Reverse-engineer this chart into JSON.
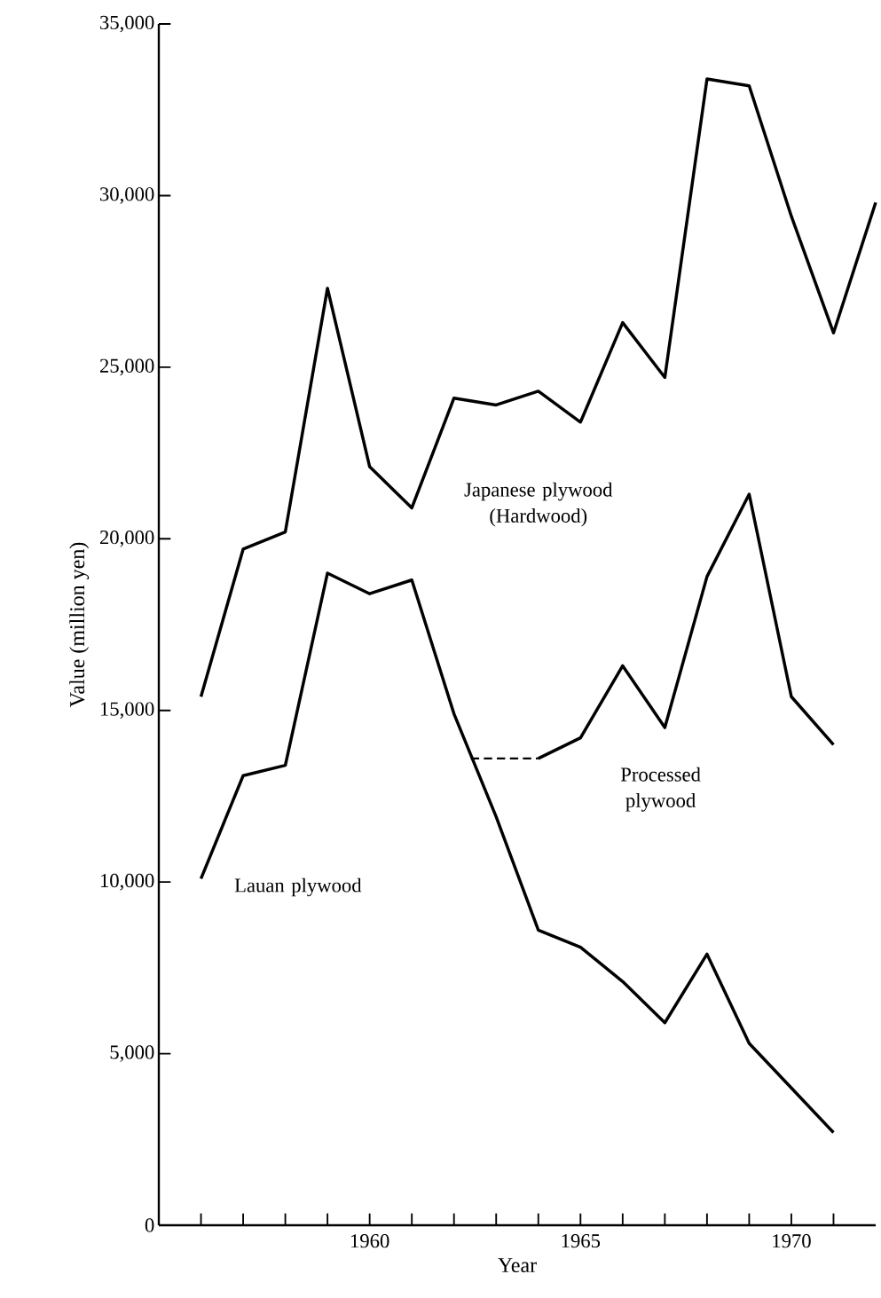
{
  "chart_data": {
    "type": "line",
    "xlabel": "Year",
    "ylabel": "Value (million yen)",
    "xlim": [
      1955,
      1972
    ],
    "ylim": [
      0,
      35000
    ],
    "xticks": [
      {
        "value": 1956,
        "label": null
      },
      {
        "value": 1957,
        "label": null
      },
      {
        "value": 1958,
        "label": null
      },
      {
        "value": 1959,
        "label": null
      },
      1960,
      {
        "value": 1961,
        "label": null
      },
      {
        "value": 1962,
        "label": null
      },
      {
        "value": 1963,
        "label": null
      },
      {
        "value": 1964,
        "label": null
      },
      1965,
      {
        "value": 1966,
        "label": null
      },
      {
        "value": 1967,
        "label": null
      },
      {
        "value": 1968,
        "label": null
      },
      {
        "value": 1969,
        "label": null
      },
      1970,
      {
        "value": 1971,
        "label": null
      }
    ],
    "yticks": [
      0,
      {
        "value": 5000,
        "label": "5,000"
      },
      {
        "value": 10000,
        "label": "10,000"
      },
      {
        "value": 15000,
        "label": "15,000"
      },
      {
        "value": 20000,
        "label": "20,000"
      },
      {
        "value": 25000,
        "label": "25,000"
      },
      {
        "value": 30000,
        "label": "30,000"
      },
      {
        "value": 35000,
        "label": "35,000"
      }
    ],
    "series": [
      {
        "name": "Japanese plywood (Hardwood)",
        "color": "#000000",
        "x": [
          1956,
          1957,
          1958,
          1959,
          1960,
          1961,
          1962,
          1963,
          1964,
          1965,
          1966,
          1967,
          1968,
          1969,
          1970,
          1971,
          1972
        ],
        "values": [
          15400,
          19700,
          20200,
          27300,
          22100,
          20900,
          24100,
          23900,
          24300,
          23400,
          26300,
          24700,
          33400,
          33200,
          29400,
          26000,
          29800
        ]
      },
      {
        "name": "Lauan plywood",
        "color": "#000000",
        "x": [
          1956,
          1957,
          1958,
          1959,
          1960,
          1961,
          1962,
          1963,
          1964,
          1965,
          1966,
          1967,
          1968,
          1969,
          1970,
          1971
        ],
        "values": [
          10100,
          13100,
          13400,
          19000,
          18400,
          18800,
          14900,
          11900,
          8600,
          8100,
          7100,
          5900,
          7900,
          5300,
          4000,
          2700
        ]
      },
      {
        "name": "Processed plywood",
        "color": "#000000",
        "x": [
          1964,
          1965,
          1966,
          1967,
          1968,
          1969,
          1970,
          1971
        ],
        "values": [
          13600,
          14200,
          16300,
          14500,
          18900,
          21300,
          15400,
          14000
        ]
      },
      {
        "color": "#000000",
        "line_style": "dashed",
        "x": [
          1962.4,
          1964
        ],
        "values": [
          13600,
          13600
        ]
      }
    ]
  }
}
